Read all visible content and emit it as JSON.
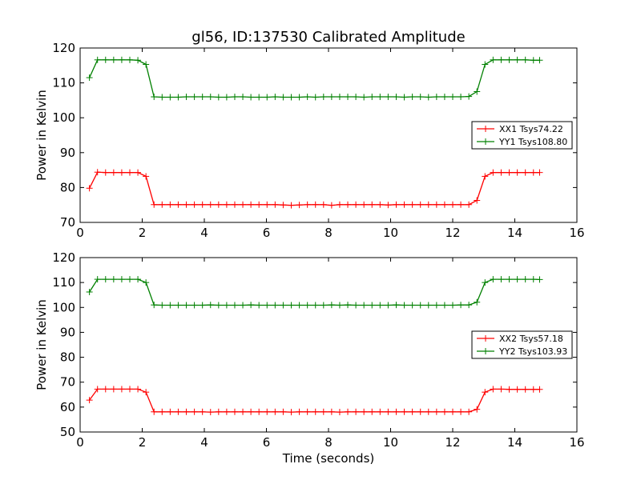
{
  "title": "gl56, ID:137530 Calibrated Amplitude",
  "xlabel": "Time (seconds)",
  "colors": {
    "xx": "#ff0000",
    "yy": "#008000",
    "frame": "#000000",
    "background": "#ffffff"
  },
  "chart_data": [
    {
      "type": "line",
      "title": "gl56, ID:137530 Calibrated Amplitude",
      "xlabel": "",
      "ylabel": "Power in Kelvin",
      "xlim": [
        0,
        16
      ],
      "ylim": [
        70,
        120
      ],
      "xticks": [
        0,
        2,
        4,
        6,
        8,
        10,
        12,
        14,
        16
      ],
      "yticks": [
        70,
        80,
        90,
        100,
        110,
        120
      ],
      "grid": false,
      "legend_position": "right",
      "x": [
        0.3,
        0.56,
        0.82,
        1.08,
        1.34,
        1.6,
        1.86,
        2.12,
        2.38,
        2.64,
        2.9,
        3.16,
        3.42,
        3.68,
        3.94,
        4.2,
        4.46,
        4.72,
        4.98,
        5.24,
        5.5,
        5.76,
        6.02,
        6.28,
        6.54,
        6.8,
        7.06,
        7.32,
        7.58,
        7.84,
        8.1,
        8.36,
        8.62,
        8.88,
        9.14,
        9.4,
        9.66,
        9.92,
        10.18,
        10.44,
        10.7,
        10.96,
        11.22,
        11.48,
        11.74,
        12.0,
        12.26,
        12.52,
        12.78,
        13.04,
        13.3,
        13.56,
        13.82,
        14.08,
        14.34,
        14.6,
        14.8
      ],
      "series": [
        {
          "name": "XX1 Tsys74.22",
          "color": "#ff0000",
          "values": [
            79.8,
            84.4,
            84.3,
            84.3,
            84.3,
            84.3,
            84.3,
            83.2,
            75.1,
            75.1,
            75.1,
            75.1,
            75.1,
            75.1,
            75.1,
            75.1,
            75.1,
            75.1,
            75.1,
            75.1,
            75.1,
            75.1,
            75.1,
            75.1,
            75.0,
            74.9,
            75.0,
            75.1,
            75.1,
            75.1,
            74.9,
            75.1,
            75.1,
            75.1,
            75.1,
            75.1,
            75.1,
            75.0,
            75.1,
            75.1,
            75.1,
            75.1,
            75.1,
            75.1,
            75.1,
            75.1,
            75.1,
            75.1,
            76.3,
            83.2,
            84.3,
            84.3,
            84.3,
            84.3,
            84.3,
            84.3,
            84.3
          ]
        },
        {
          "name": "YY1 Tsys108.80",
          "color": "#008000",
          "values": [
            111.5,
            116.6,
            116.6,
            116.6,
            116.6,
            116.6,
            116.5,
            115.3,
            106.0,
            105.9,
            105.9,
            105.9,
            106.0,
            106.0,
            106.0,
            106.0,
            105.9,
            105.9,
            106.0,
            106.0,
            105.9,
            105.9,
            105.9,
            106.0,
            105.9,
            105.9,
            105.9,
            106.0,
            105.9,
            106.0,
            106.0,
            106.0,
            106.0,
            106.0,
            105.9,
            106.0,
            106.0,
            106.0,
            106.0,
            105.9,
            106.0,
            106.0,
            105.9,
            106.0,
            106.0,
            106.0,
            106.0,
            106.1,
            107.5,
            115.3,
            116.6,
            116.6,
            116.6,
            116.6,
            116.6,
            116.5,
            116.5
          ]
        }
      ]
    },
    {
      "type": "line",
      "title": "",
      "xlabel": "Time (seconds)",
      "ylabel": "Power in Kelvin",
      "xlim": [
        0,
        16
      ],
      "ylim": [
        50,
        120
      ],
      "xticks": [
        0,
        2,
        4,
        6,
        8,
        10,
        12,
        14,
        16
      ],
      "yticks": [
        50,
        60,
        70,
        80,
        90,
        100,
        110,
        120
      ],
      "grid": false,
      "legend_position": "right",
      "x": [
        0.3,
        0.56,
        0.82,
        1.08,
        1.34,
        1.6,
        1.86,
        2.12,
        2.38,
        2.64,
        2.9,
        3.16,
        3.42,
        3.68,
        3.94,
        4.2,
        4.46,
        4.72,
        4.98,
        5.24,
        5.5,
        5.76,
        6.02,
        6.28,
        6.54,
        6.8,
        7.06,
        7.32,
        7.58,
        7.84,
        8.1,
        8.36,
        8.62,
        8.88,
        9.14,
        9.4,
        9.66,
        9.92,
        10.18,
        10.44,
        10.7,
        10.96,
        11.22,
        11.48,
        11.74,
        12.0,
        12.26,
        12.52,
        12.78,
        13.04,
        13.3,
        13.56,
        13.82,
        14.08,
        14.34,
        14.6,
        14.8
      ],
      "series": [
        {
          "name": "XX2 Tsys57.18",
          "color": "#ff0000",
          "values": [
            62.8,
            67.2,
            67.2,
            67.2,
            67.2,
            67.2,
            67.2,
            66.0,
            58.1,
            58.1,
            58.1,
            58.1,
            58.1,
            58.1,
            58.1,
            58.0,
            58.1,
            58.1,
            58.1,
            58.1,
            58.1,
            58.1,
            58.1,
            58.1,
            58.1,
            58.0,
            58.1,
            58.1,
            58.1,
            58.1,
            58.1,
            58.0,
            58.1,
            58.1,
            58.1,
            58.1,
            58.1,
            58.1,
            58.1,
            58.1,
            58.1,
            58.1,
            58.1,
            58.1,
            58.1,
            58.1,
            58.1,
            58.1,
            59.1,
            66.0,
            67.2,
            67.2,
            67.1,
            67.1,
            67.1,
            67.1,
            67.1
          ]
        },
        {
          "name": "YY2 Tsys103.93",
          "color": "#008000",
          "values": [
            106.2,
            111.3,
            111.3,
            111.3,
            111.3,
            111.3,
            111.3,
            110.0,
            101.0,
            100.9,
            100.9,
            100.9,
            100.9,
            100.9,
            100.9,
            101.0,
            100.9,
            100.9,
            100.9,
            100.9,
            101.0,
            100.9,
            100.9,
            100.9,
            100.9,
            100.9,
            100.9,
            100.9,
            100.9,
            100.9,
            101.0,
            100.9,
            101.0,
            100.9,
            100.9,
            100.9,
            100.9,
            100.9,
            101.0,
            100.9,
            100.9,
            100.9,
            100.9,
            100.9,
            100.9,
            100.9,
            101.0,
            101.0,
            102.1,
            110.0,
            111.3,
            111.3,
            111.3,
            111.3,
            111.3,
            111.3,
            111.2
          ]
        }
      ]
    }
  ]
}
